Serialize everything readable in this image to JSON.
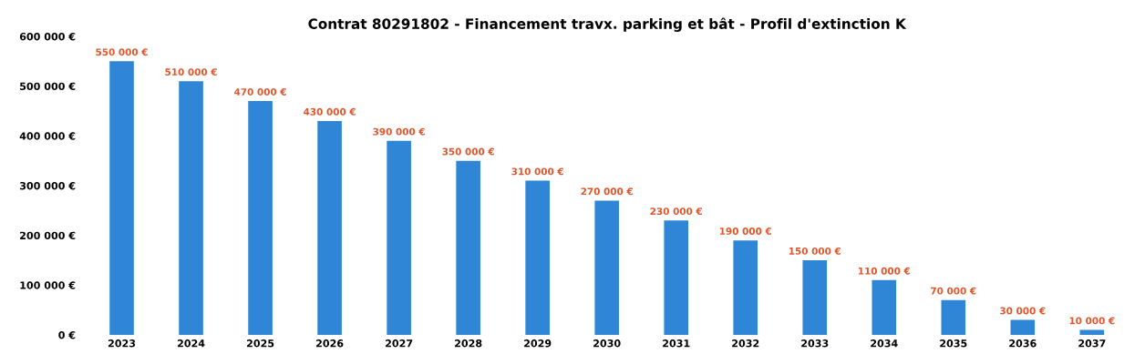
{
  "chart_data": {
    "type": "bar",
    "title": "Contrat 80291802 - Financement travx. parking et bât - Profil d'extinction K",
    "categories": [
      "2023",
      "2024",
      "2025",
      "2026",
      "2027",
      "2028",
      "2029",
      "2030",
      "2031",
      "2032",
      "2033",
      "2034",
      "2035",
      "2036",
      "2037"
    ],
    "values": [
      550000,
      510000,
      470000,
      430000,
      390000,
      350000,
      310000,
      270000,
      230000,
      190000,
      150000,
      110000,
      70000,
      30000,
      10000
    ],
    "value_labels": [
      "550 000 €",
      "510 000 €",
      "470 000 €",
      "430 000 €",
      "390 000 €",
      "350 000 €",
      "310 000 €",
      "270 000 €",
      "230 000 €",
      "190 000 €",
      "150 000 €",
      "110 000 €",
      "70 000 €",
      "30 000 €",
      "10 000 €"
    ],
    "color": "#2f86d6",
    "ylim": [
      0,
      600000
    ],
    "yticks": [
      {
        "value": 0,
        "label": "0 €"
      },
      {
        "value": 100000,
        "label": "100 000 €"
      },
      {
        "value": 200000,
        "label": "200 000 €"
      },
      {
        "value": 300000,
        "label": "300 000 €"
      },
      {
        "value": 400000,
        "label": "400 000 €"
      },
      {
        "value": 500000,
        "label": "500 000 €"
      },
      {
        "value": 600000,
        "label": "600 000 €"
      }
    ],
    "grid": false
  }
}
